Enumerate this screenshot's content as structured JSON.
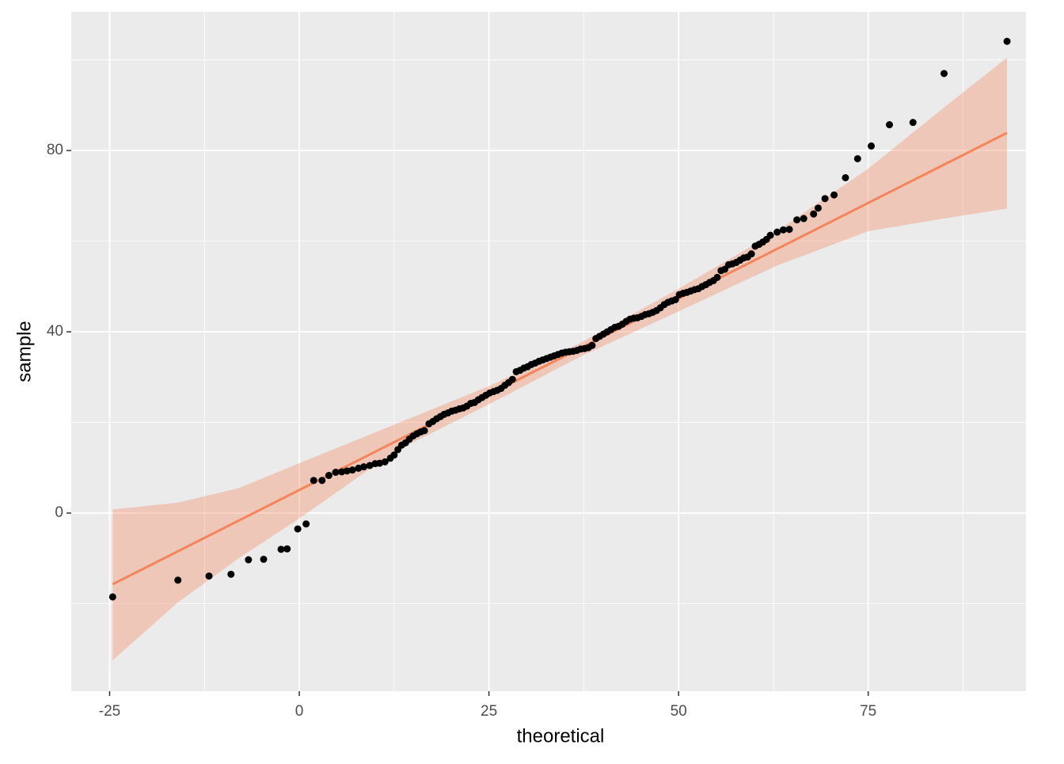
{
  "chart_data": {
    "type": "scatter",
    "x_label": "theoretical",
    "y_label": "sample",
    "xlim": [
      -30.06,
      95.8
    ],
    "ylim": [
      -39.3,
      110.6
    ],
    "xticks": [
      -25,
      0,
      25,
      50,
      75
    ],
    "yticks": [
      0,
      40,
      80
    ],
    "x_minor_grid": [
      -12.5,
      12.5,
      37.5,
      62.5,
      87.5
    ],
    "y_minor_grid": [
      -20,
      20,
      60,
      100
    ],
    "grid": true,
    "point_color": "#000000",
    "points": {
      "x": [
        -24.6,
        -16,
        -11.9,
        -9,
        -6.7,
        -4.7,
        -2.4,
        -1.6,
        -0.2,
        0.9,
        1.9,
        3,
        3.9,
        4.8,
        5.6,
        6.3,
        7,
        7.8,
        8.5,
        9.3,
        10,
        10.6,
        11.3,
        12,
        12.5,
        13,
        13.5,
        14,
        14.5,
        15,
        15.5,
        16,
        16.5,
        17.1,
        17.6,
        18.1,
        18.6,
        19.1,
        19.6,
        20.1,
        20.6,
        21.1,
        21.6,
        22.1,
        22.6,
        23.1,
        23.6,
        24.1,
        24.6,
        25.1,
        25.6,
        26.1,
        26.6,
        27.1,
        27.6,
        28.1,
        28.6,
        29.1,
        29.6,
        30.1,
        30.6,
        31.1,
        31.6,
        32.1,
        32.6,
        33.1,
        33.6,
        34.1,
        34.6,
        35.1,
        35.6,
        36.1,
        36.6,
        37.1,
        37.6,
        38.1,
        38.6,
        39.1,
        39.6,
        40.1,
        40.6,
        41.1,
        41.6,
        42.1,
        42.6,
        43.1,
        43.6,
        44.1,
        44.6,
        45.1,
        45.6,
        46.1,
        46.6,
        47.1,
        47.6,
        48.1,
        48.6,
        49.1,
        49.6,
        50.1,
        50.6,
        51.1,
        51.6,
        52.1,
        52.6,
        53.1,
        53.6,
        54.1,
        54.6,
        55.1,
        55.6,
        56.1,
        56.6,
        57.1,
        57.6,
        58.1,
        58.6,
        59.1,
        59.6,
        60.1,
        60.6,
        61.1,
        61.6,
        62.1,
        63,
        63.8,
        64.6,
        65.6,
        66.5,
        67.8,
        68.4,
        69.3,
        70.5,
        72,
        73.6,
        75.4,
        77.8,
        80.9,
        85,
        93.3
      ],
      "y": [
        -18.5,
        -14.8,
        -13.9,
        -13.5,
        -10.3,
        -10.2,
        -8,
        -7.9,
        -3.5,
        -2.4,
        7.2,
        7.2,
        8.3,
        9,
        9.1,
        9.3,
        9.5,
        9.9,
        10.2,
        10.5,
        10.9,
        11,
        11.3,
        12.1,
        12.8,
        14,
        15,
        15.5,
        16.3,
        17,
        17.5,
        17.9,
        18.2,
        19.7,
        20.2,
        20.8,
        21.3,
        21.8,
        22.1,
        22.5,
        22.7,
        23,
        23.2,
        23.6,
        24.2,
        24.4,
        25,
        25.5,
        26,
        26.5,
        26.8,
        27.1,
        27.5,
        28.2,
        28.8,
        29.5,
        31.2,
        31.5,
        32,
        32.3,
        32.8,
        33.1,
        33.5,
        33.8,
        34.1,
        34.4,
        34.7,
        35,
        35.3,
        35.5,
        35.6,
        35.7,
        35.9,
        36.2,
        36.3,
        36.5,
        37,
        38.5,
        39,
        39.5,
        40,
        40.5,
        41,
        41.2,
        41.7,
        42.3,
        42.8,
        43,
        43.1,
        43.4,
        43.8,
        44,
        44.3,
        44.7,
        45.3,
        46,
        46.5,
        46.8,
        47.1,
        48.2,
        48.5,
        48.7,
        49,
        49.3,
        49.5,
        50,
        50.4,
        50.9,
        51.3,
        52,
        53.5,
        53.8,
        54.8,
        55,
        55.3,
        55.8,
        56.3,
        56.5,
        57.2,
        58.9,
        59.3,
        59.8,
        60.4,
        61.3,
        62,
        62.5,
        62.6,
        64.7,
        65,
        66,
        67.3,
        69.4,
        70.2,
        74,
        78.2,
        81,
        85.7,
        86.2,
        97,
        104.1
      ]
    },
    "fit": {
      "color": "#f4845a",
      "x": [
        -24.6,
        93.3
      ],
      "y": [
        -15.7,
        83.9
      ]
    },
    "band": {
      "color": "#f4845a",
      "x": [
        -24.6,
        -16,
        -8,
        0,
        12.5,
        25,
        37,
        50,
        62.8,
        75,
        85,
        93.3
      ],
      "lower": [
        -32.5,
        -19.7,
        -10,
        -1.2,
        13.5,
        24,
        34.5,
        44.5,
        54.5,
        62.2,
        65,
        67.2
      ],
      "upper": [
        0.8,
        2.3,
        5.5,
        11,
        19.5,
        28,
        37.5,
        49.5,
        62,
        76,
        89.5,
        100.5
      ]
    }
  }
}
